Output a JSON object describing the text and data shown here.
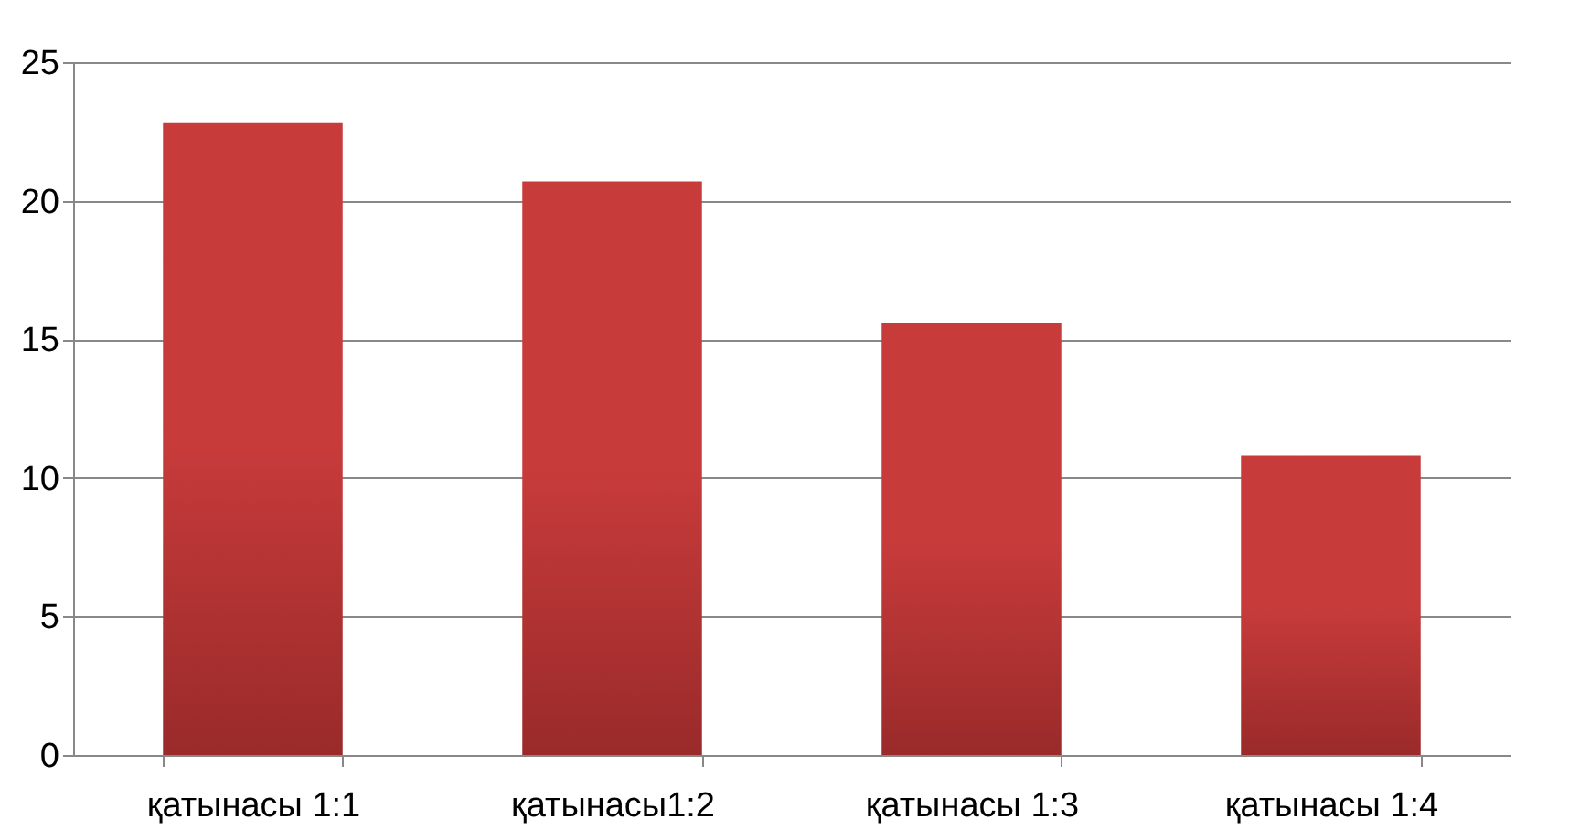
{
  "chart_data": {
    "type": "bar",
    "categories": [
      "қатынасы 1:1",
      "қатынасы1:2",
      "қатынасы 1:3",
      "қатынасы 1:4"
    ],
    "values": [
      22.8,
      20.7,
      15.6,
      10.8
    ],
    "color": "#c83b3b",
    "ylim": [
      0,
      25
    ],
    "yticks": [
      0,
      5,
      10,
      15,
      20,
      25
    ],
    "grid": "y"
  }
}
